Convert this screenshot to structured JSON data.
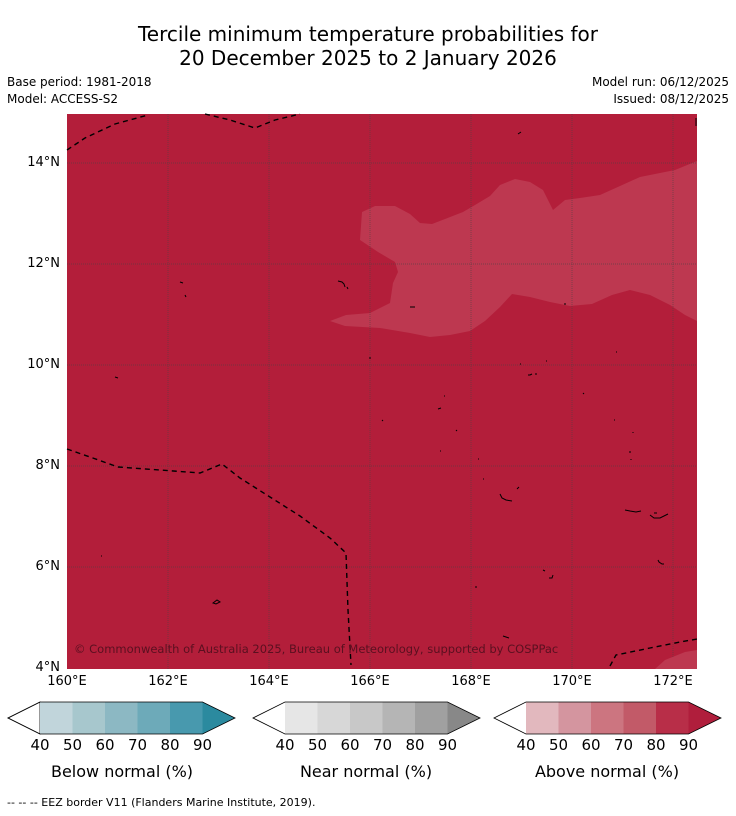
{
  "title": {
    "line1": "Tercile minimum temperature probabilities for",
    "line2": "20 December 2025 to 2 January 2026"
  },
  "meta": {
    "base_period": "Base period: 1981-2018",
    "model": "Model: ACCESS-S2",
    "model_run": "Model run: 06/12/2025",
    "issued": "Issued: 08/12/2025"
  },
  "map": {
    "lat_labels": [
      "14°N",
      "12°N",
      "10°N",
      "8°N",
      "6°N",
      "4°N"
    ],
    "lon_labels": [
      "160°E",
      "162°E",
      "164°E",
      "166°E",
      "168°E",
      "170°E",
      "172°E"
    ],
    "copyright": "© Commonwealth of Australia 2025, Bureau of Meteorology, supported by COSPPac",
    "colors": {
      "above_80": "#b31e3a",
      "above_70": "#bd3850",
      "border": "#000000"
    }
  },
  "colorbars": {
    "ticks": [
      "40",
      "50",
      "60",
      "70",
      "80",
      "90"
    ],
    "below": {
      "label": "Below normal (%)",
      "colors": [
        "#c1d5db",
        "#a7c7cd",
        "#8cb8c3",
        "#6daab9",
        "#4899ae",
        "#2b8a9f"
      ]
    },
    "near": {
      "label": "Near normal (%)",
      "colors": [
        "#e6e6e6",
        "#d7d7d7",
        "#c8c8c8",
        "#b5b5b5",
        "#a0a0a0",
        "#888888"
      ]
    },
    "above": {
      "label": "Above normal (%)",
      "colors": [
        "#e2b8be",
        "#d4959f",
        "#cc7580",
        "#c25a68",
        "#b82e48",
        "#b01e3c"
      ]
    }
  },
  "footer": {
    "legend": "--  --  -- EEZ border V11 (Flanders Marine Institute, 2019)."
  }
}
